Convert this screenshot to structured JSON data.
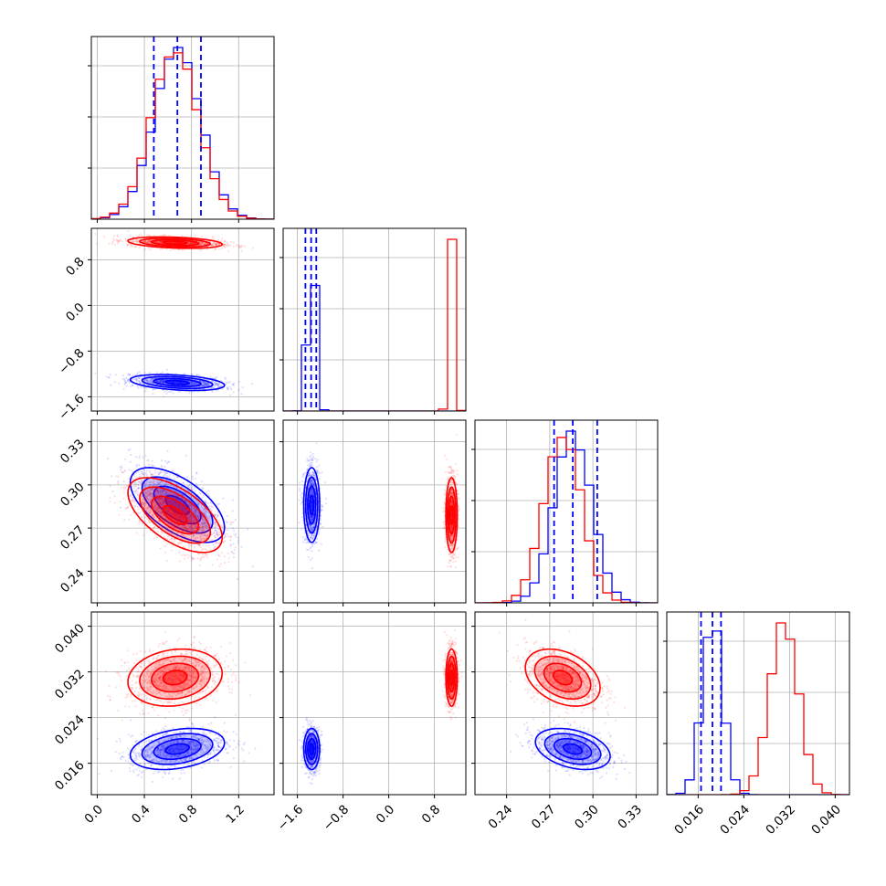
{
  "figure": {
    "type": "corner-plot",
    "colors": {
      "series_a": "#0000ff",
      "series_b": "#ff0000",
      "grid": "#b0b0b0",
      "frame": "#000000"
    }
  },
  "chart_data": {
    "type": "corner",
    "parameters": [
      {
        "range": [
          -0.05,
          1.5
        ],
        "ticks": [
          0.0,
          0.4,
          0.8,
          1.2
        ],
        "tick_labels": [
          "0.0",
          "0.4",
          "0.8",
          "1.2"
        ]
      },
      {
        "range": [
          -1.85,
          1.35
        ],
        "ticks": [
          -1.6,
          -0.8,
          0.0,
          0.8
        ],
        "tick_labels": [
          "−1.6",
          "−0.8",
          "0.0",
          "0.8"
        ]
      },
      {
        "range": [
          0.218,
          0.345
        ],
        "ticks": [
          0.24,
          0.27,
          0.3,
          0.33
        ],
        "tick_labels": [
          "0.24",
          "0.27",
          "0.30",
          "0.33"
        ]
      },
      {
        "range": [
          0.0105,
          0.0425
        ],
        "ticks": [
          0.016,
          0.024,
          0.032,
          0.04
        ],
        "tick_labels": [
          "0.016",
          "0.024",
          "0.032",
          "0.040"
        ]
      }
    ],
    "series": [
      {
        "color": "#0000ff",
        "mean": [
          0.68,
          -1.35,
          0.286,
          0.0185
        ],
        "sd": [
          0.2,
          0.07,
          0.013,
          0.0018
        ],
        "quantiles": [
          [
            0.48,
            0.68,
            0.88
          ],
          [
            -1.46,
            -1.36,
            -1.27
          ],
          [
            0.273,
            0.286,
            0.303
          ],
          [
            0.0165,
            0.0185,
            0.02
          ]
        ],
        "corr": [
          [
            1,
            -0.35,
            -0.6,
            0.3
          ],
          [
            -0.35,
            1,
            0,
            0
          ],
          [
            -0.6,
            0,
            1,
            -0.35
          ],
          [
            0.3,
            0,
            -0.35,
            1
          ]
        ]
      },
      {
        "color": "#ff0000",
        "mean": [
          0.66,
          1.1,
          0.279,
          0.031
        ],
        "sd": [
          0.2,
          0.05,
          0.013,
          0.0025
        ],
        "corr": [
          [
            1,
            -0.3,
            -0.6,
            0.15
          ],
          [
            -0.3,
            1,
            0,
            0
          ],
          [
            -0.6,
            0,
            1,
            -0.35
          ],
          [
            0.15,
            0,
            -0.35,
            1
          ]
        ]
      }
    ],
    "grid": true
  }
}
